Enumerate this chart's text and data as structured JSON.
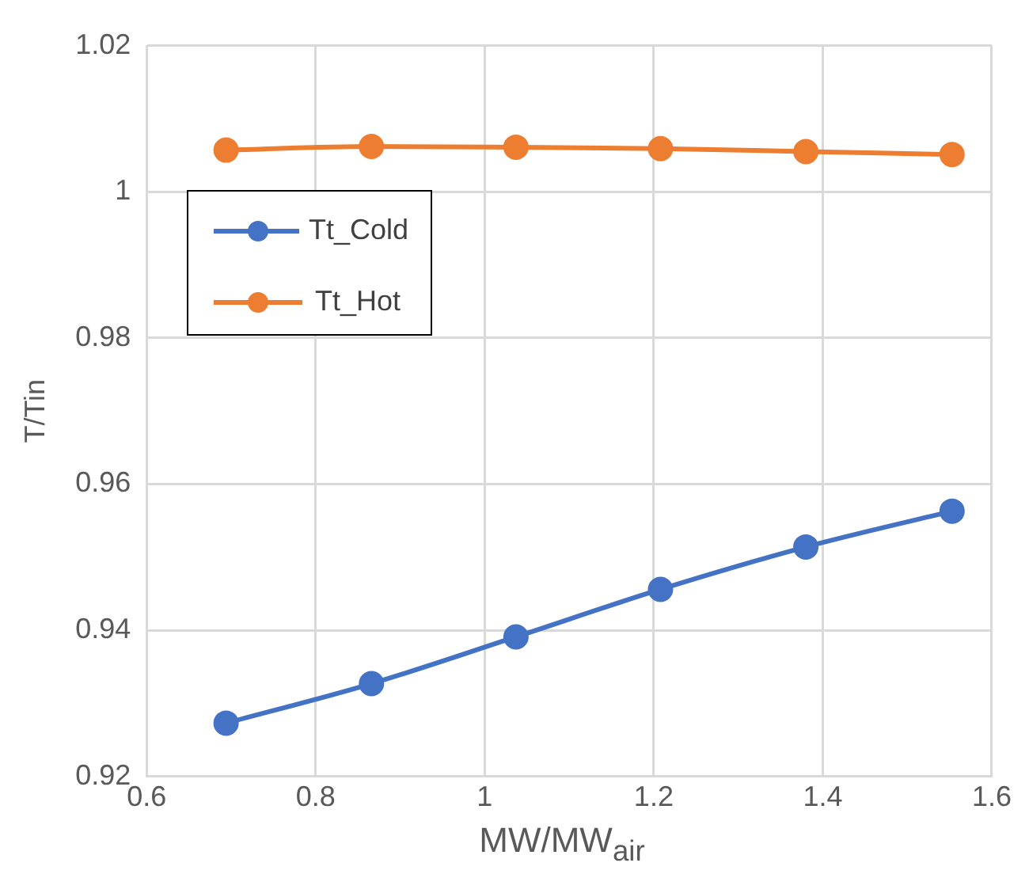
{
  "chart_data": {
    "type": "line",
    "xlabel": "MW/MW$_{air}$",
    "ylabel": "T/Tin",
    "x": [
      0.694,
      0.866,
      1.037,
      1.208,
      1.38,
      1.553
    ],
    "series": [
      {
        "name": "Tt_Cold",
        "color": "#4472c4",
        "values": [
          0.9273,
          0.9327,
          0.9391,
          0.9456,
          0.9514,
          0.9563
        ]
      },
      {
        "name": "Tt_Hot",
        "color": "#ed7d31",
        "values": [
          1.0057,
          1.0062,
          1.0061,
          1.0059,
          1.0055,
          1.0051
        ]
      }
    ],
    "xlim": [
      0.6,
      1.6
    ],
    "xticks": [
      0.6,
      0.8,
      1,
      1.2,
      1.4,
      1.6
    ],
    "ylim": [
      0.92,
      1.02
    ],
    "yticks": [
      0.92,
      0.94,
      0.96,
      0.98,
      1,
      1.02
    ],
    "grid": true,
    "legend": "top left",
    "marker": "circle",
    "line_style": "solid"
  }
}
